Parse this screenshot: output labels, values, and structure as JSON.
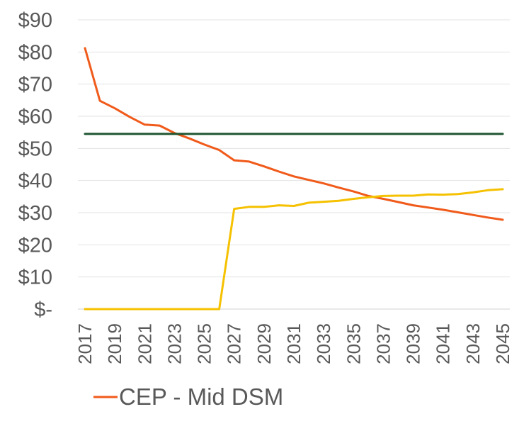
{
  "chart_data": {
    "type": "line",
    "title": "",
    "xlabel": "",
    "ylabel": "",
    "ylim": [
      0,
      90
    ],
    "y_ticks": [
      0,
      10,
      20,
      30,
      40,
      50,
      60,
      70,
      80,
      90
    ],
    "y_tick_labels": [
      "$-",
      "$10",
      "$20",
      "$30",
      "$40",
      "$50",
      "$60",
      "$70",
      "$80",
      "$90"
    ],
    "x": [
      2017,
      2018,
      2019,
      2020,
      2021,
      2022,
      2023,
      2024,
      2025,
      2026,
      2027,
      2028,
      2029,
      2030,
      2031,
      2032,
      2033,
      2034,
      2035,
      2036,
      2037,
      2038,
      2039,
      2040,
      2041,
      2042,
      2043,
      2044,
      2045
    ],
    "x_tick_labels": [
      "2017",
      "2019",
      "2021",
      "2023",
      "2025",
      "2027",
      "2029",
      "2031",
      "2033",
      "2035",
      "2037",
      "2039",
      "2041",
      "2043",
      "2045"
    ],
    "grid": true,
    "legend_position": "bottom",
    "series": [
      {
        "name": "CEP - Mid DSM",
        "color": "#f05a1a",
        "values": [
          81.2,
          64.8,
          62.5,
          59.8,
          57.4,
          57.1,
          54.8,
          53.1,
          51.2,
          49.5,
          46.3,
          45.9,
          44.4,
          42.8,
          41.3,
          40.2,
          39.1,
          37.8,
          36.6,
          35.2,
          34.3,
          33.3,
          32.3,
          31.6,
          30.9,
          30.1,
          29.3,
          28.5,
          27.8
        ]
      },
      {
        "name": "",
        "color": "#1e5631",
        "values": [
          54.5,
          54.5,
          54.5,
          54.5,
          54.5,
          54.5,
          54.5,
          54.5,
          54.5,
          54.5,
          54.5,
          54.5,
          54.5,
          54.5,
          54.5,
          54.5,
          54.5,
          54.5,
          54.5,
          54.5,
          54.5,
          54.5,
          54.5,
          54.5,
          54.5,
          54.5,
          54.5,
          54.5,
          54.5
        ]
      },
      {
        "name": "",
        "color": "#f5c100",
        "values": [
          0,
          0,
          0,
          0,
          0,
          0,
          0,
          0,
          0,
          0,
          31.2,
          31.8,
          31.8,
          32.3,
          32.1,
          33.1,
          33.4,
          33.7,
          34.3,
          34.8,
          35.2,
          35.3,
          35.3,
          35.7,
          35.6,
          35.8,
          36.3,
          37.0,
          37.3
        ]
      }
    ]
  }
}
